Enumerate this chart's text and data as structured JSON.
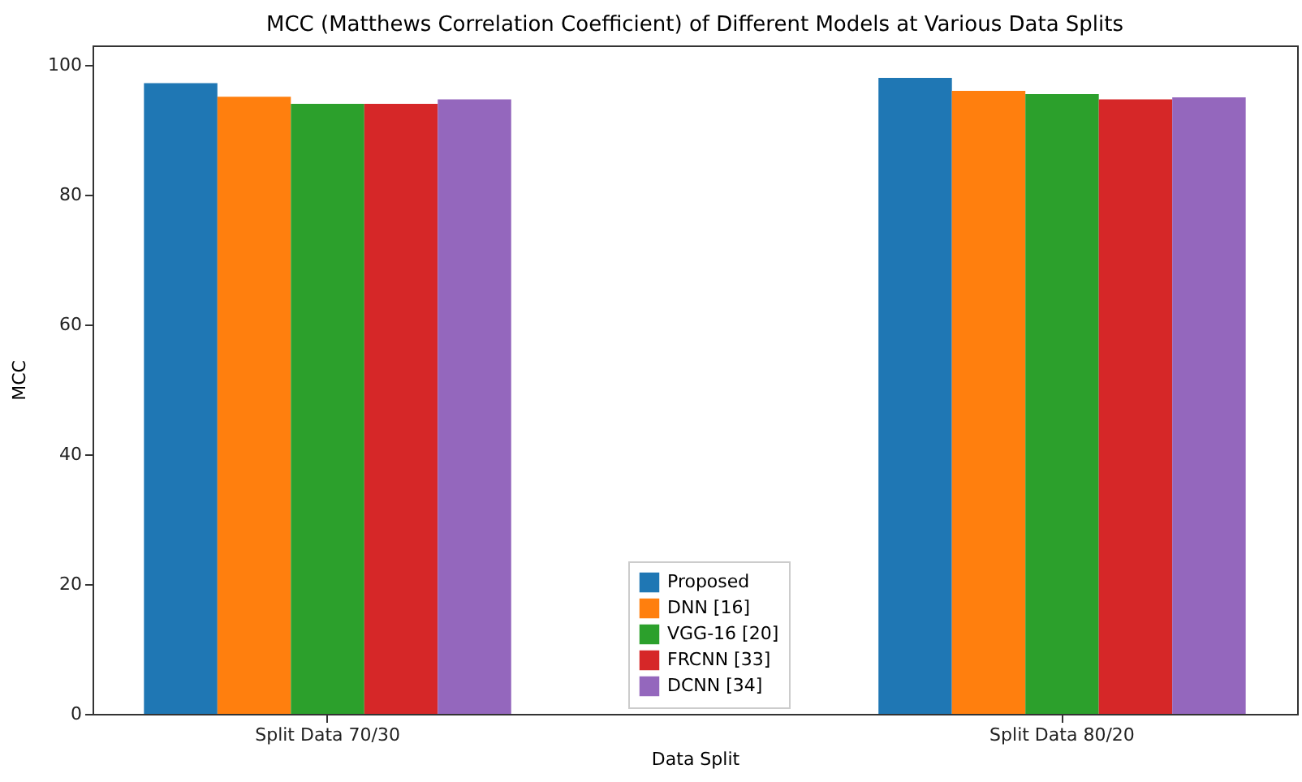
{
  "chart_data": {
    "type": "bar",
    "title": "MCC (Matthews Correlation Coefficient) of Different Models at Various Data Splits",
    "xlabel": "Data Split",
    "ylabel": "MCC",
    "categories": [
      "Split Data 70/30",
      "Split Data 80/20"
    ],
    "series": [
      {
        "name": "Proposed",
        "color": "#1f77b4",
        "values": [
          97.2,
          98.0
        ]
      },
      {
        "name": "DNN [16]",
        "color": "#ff7f0e",
        "values": [
          95.1,
          96.0
        ]
      },
      {
        "name": "VGG-16 [20]",
        "color": "#2ca02c",
        "values": [
          94.0,
          95.5
        ]
      },
      {
        "name": "FRCNN [33]",
        "color": "#d62728",
        "values": [
          94.0,
          94.7
        ]
      },
      {
        "name": "DCNN [34]",
        "color": "#9467bd",
        "values": [
          94.7,
          95.0
        ]
      }
    ],
    "ylim": [
      0,
      103
    ],
    "yticks": [
      0,
      20,
      40,
      60,
      80,
      100
    ],
    "grid": false,
    "legend": "bottom"
  }
}
